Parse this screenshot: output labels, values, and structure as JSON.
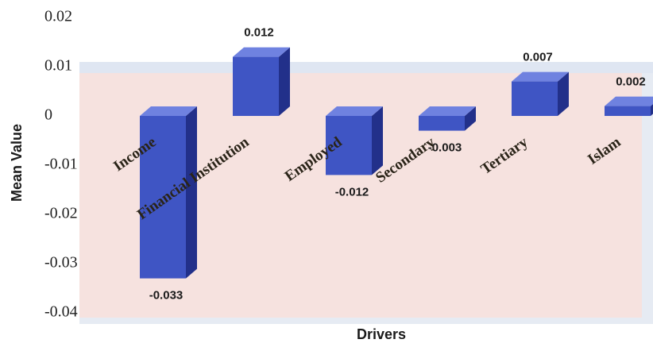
{
  "chart_data": {
    "type": "bar3d",
    "y_label": "Mean Value",
    "x_label": "Drivers",
    "categories": [
      "Income",
      "Financial Institution",
      "Employed",
      "Secondary",
      "Tertiary",
      "Islam"
    ],
    "values": [
      -0.033,
      0.012,
      -0.012,
      -0.003,
      0.007,
      0.002
    ],
    "color": "#3f55c4",
    "ylim": [
      -0.04,
      0.02
    ],
    "yticks": [
      0.02,
      0.01,
      0,
      -0.01,
      -0.02,
      -0.03,
      -0.04
    ],
    "grid": false
  }
}
